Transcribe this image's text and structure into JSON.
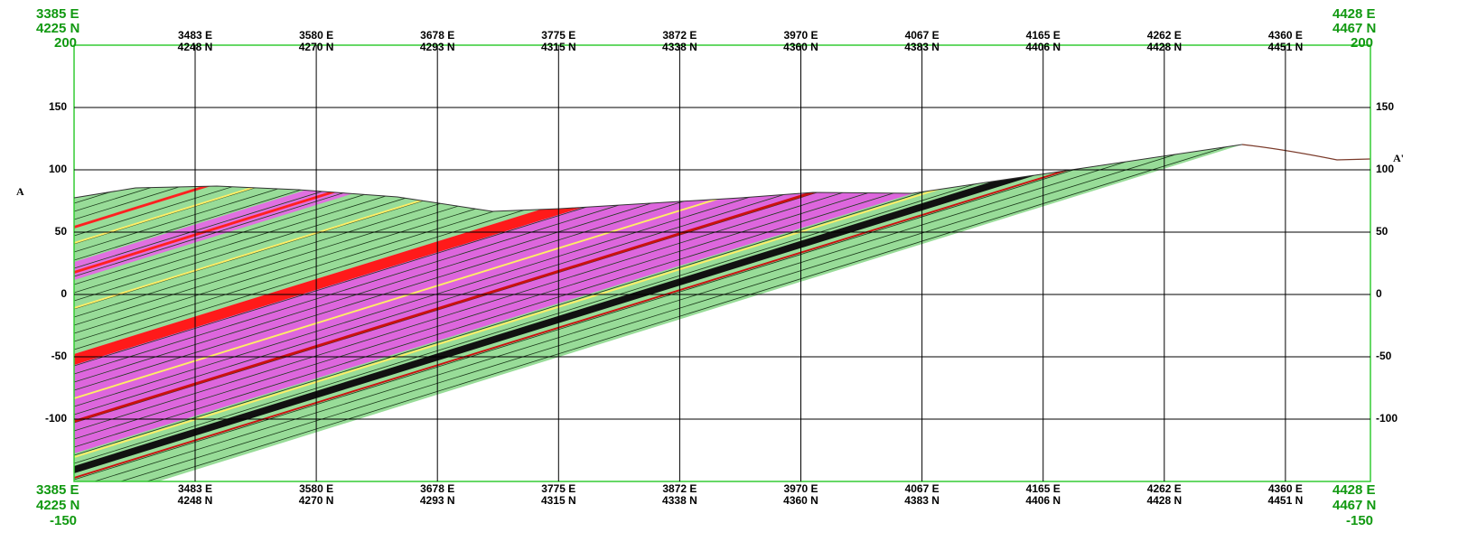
{
  "corners": {
    "top_left": {
      "e": "3385 E",
      "n": "4225 N",
      "elev": 200
    },
    "top_right": {
      "e": "4428 E",
      "n": "4467 N",
      "elev": 200
    },
    "bottom_left": {
      "e": "3385 E",
      "n": "4225 N",
      "elev": -150
    },
    "bottom_right": {
      "e": "4428 E",
      "n": "4467 N",
      "elev": -150
    }
  },
  "columns": [
    {
      "e": "3483 E",
      "n": "4248 N"
    },
    {
      "e": "3580 E",
      "n": "4270 N"
    },
    {
      "e": "3678 E",
      "n": "4293 N"
    },
    {
      "e": "3775 E",
      "n": "4315 N"
    },
    {
      "e": "3872 E",
      "n": "4338 N"
    },
    {
      "e": "3970 E",
      "n": "4360 N"
    },
    {
      "e": "4067 E",
      "n": "4383 N"
    },
    {
      "e": "4165 E",
      "n": "4406 N"
    },
    {
      "e": "4262 E",
      "n": "4428 N"
    },
    {
      "e": "4360 E",
      "n": "4451 N"
    }
  ],
  "elevation_ticks": [
    150,
    100,
    50,
    0,
    -50,
    -100
  ],
  "section_start": "A",
  "section_end": "A'"
}
